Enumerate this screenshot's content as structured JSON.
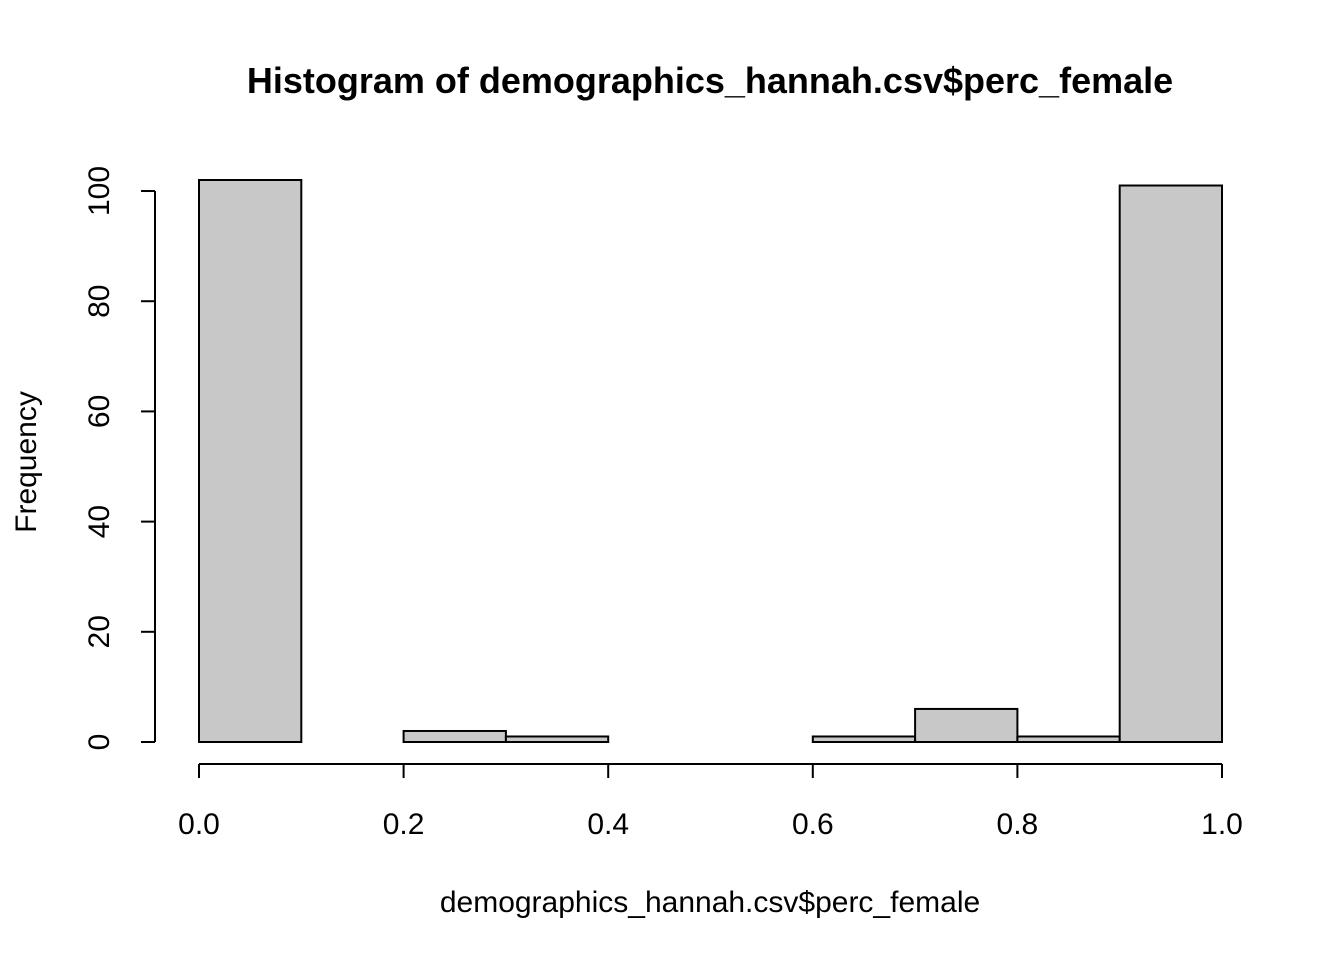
{
  "chart_data": {
    "type": "bar",
    "subtype": "histogram",
    "title": "Histogram of demographics_hannah.csv$perc_female",
    "xlabel": "demographics_hannah.csv$perc_female",
    "ylabel": "Frequency",
    "bins": [
      {
        "start": 0.0,
        "end": 0.1,
        "count": 102
      },
      {
        "start": 0.1,
        "end": 0.2,
        "count": 0
      },
      {
        "start": 0.2,
        "end": 0.3,
        "count": 2
      },
      {
        "start": 0.3,
        "end": 0.4,
        "count": 1
      },
      {
        "start": 0.4,
        "end": 0.5,
        "count": 0
      },
      {
        "start": 0.5,
        "end": 0.6,
        "count": 0
      },
      {
        "start": 0.6,
        "end": 0.7,
        "count": 1
      },
      {
        "start": 0.7,
        "end": 0.8,
        "count": 6
      },
      {
        "start": 0.8,
        "end": 0.9,
        "count": 1
      },
      {
        "start": 0.9,
        "end": 1.0,
        "count": 101
      }
    ],
    "xlim": [
      0.0,
      1.0
    ],
    "ylim": [
      0,
      102
    ],
    "x_ticks": [
      0.0,
      0.2,
      0.4,
      0.6,
      0.8,
      1.0
    ],
    "x_tick_labels": [
      "0.0",
      "0.2",
      "0.4",
      "0.6",
      "0.8",
      "1.0"
    ],
    "y_ticks": [
      0,
      20,
      40,
      60,
      80,
      100
    ],
    "y_tick_labels": [
      "0",
      "20",
      "40",
      "60",
      "80",
      "100"
    ],
    "grid": false,
    "bar_color": "#c8c8c8",
    "bar_border_color": "#000000"
  }
}
